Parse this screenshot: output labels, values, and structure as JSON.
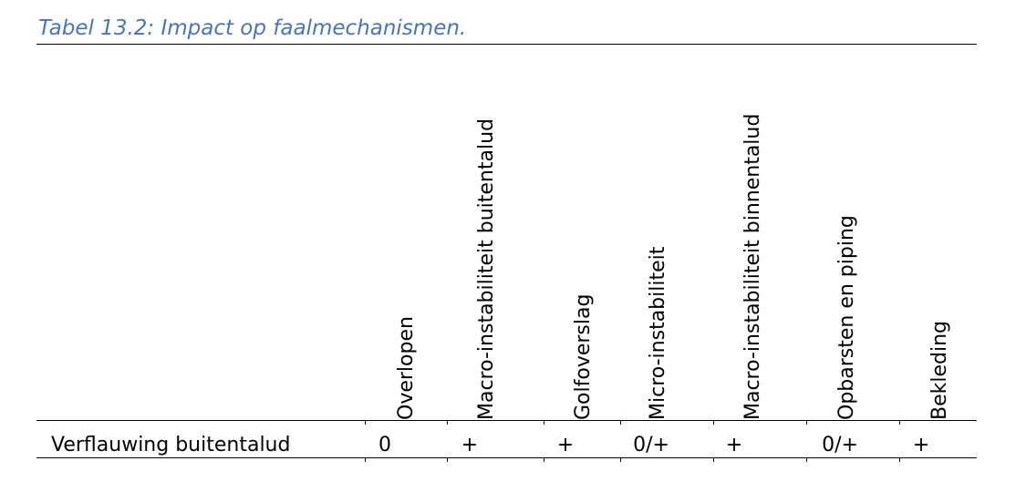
{
  "caption": "Tabel 13.2: Impact op faalmechanismen.",
  "columns": [
    "Overlopen",
    "Macro-instabiliteit buitentalud",
    "Golfoverslag",
    "Micro-instabiliteit",
    "Macro-instabiliteit binnentalud",
    "Opbarsten en piping",
    "Bekleding"
  ],
  "rows": [
    {
      "label": "Verflauwing buitentalud",
      "values": [
        "0",
        "+",
        "+",
        "0/+",
        "+",
        "0/+",
        "+"
      ]
    }
  ]
}
